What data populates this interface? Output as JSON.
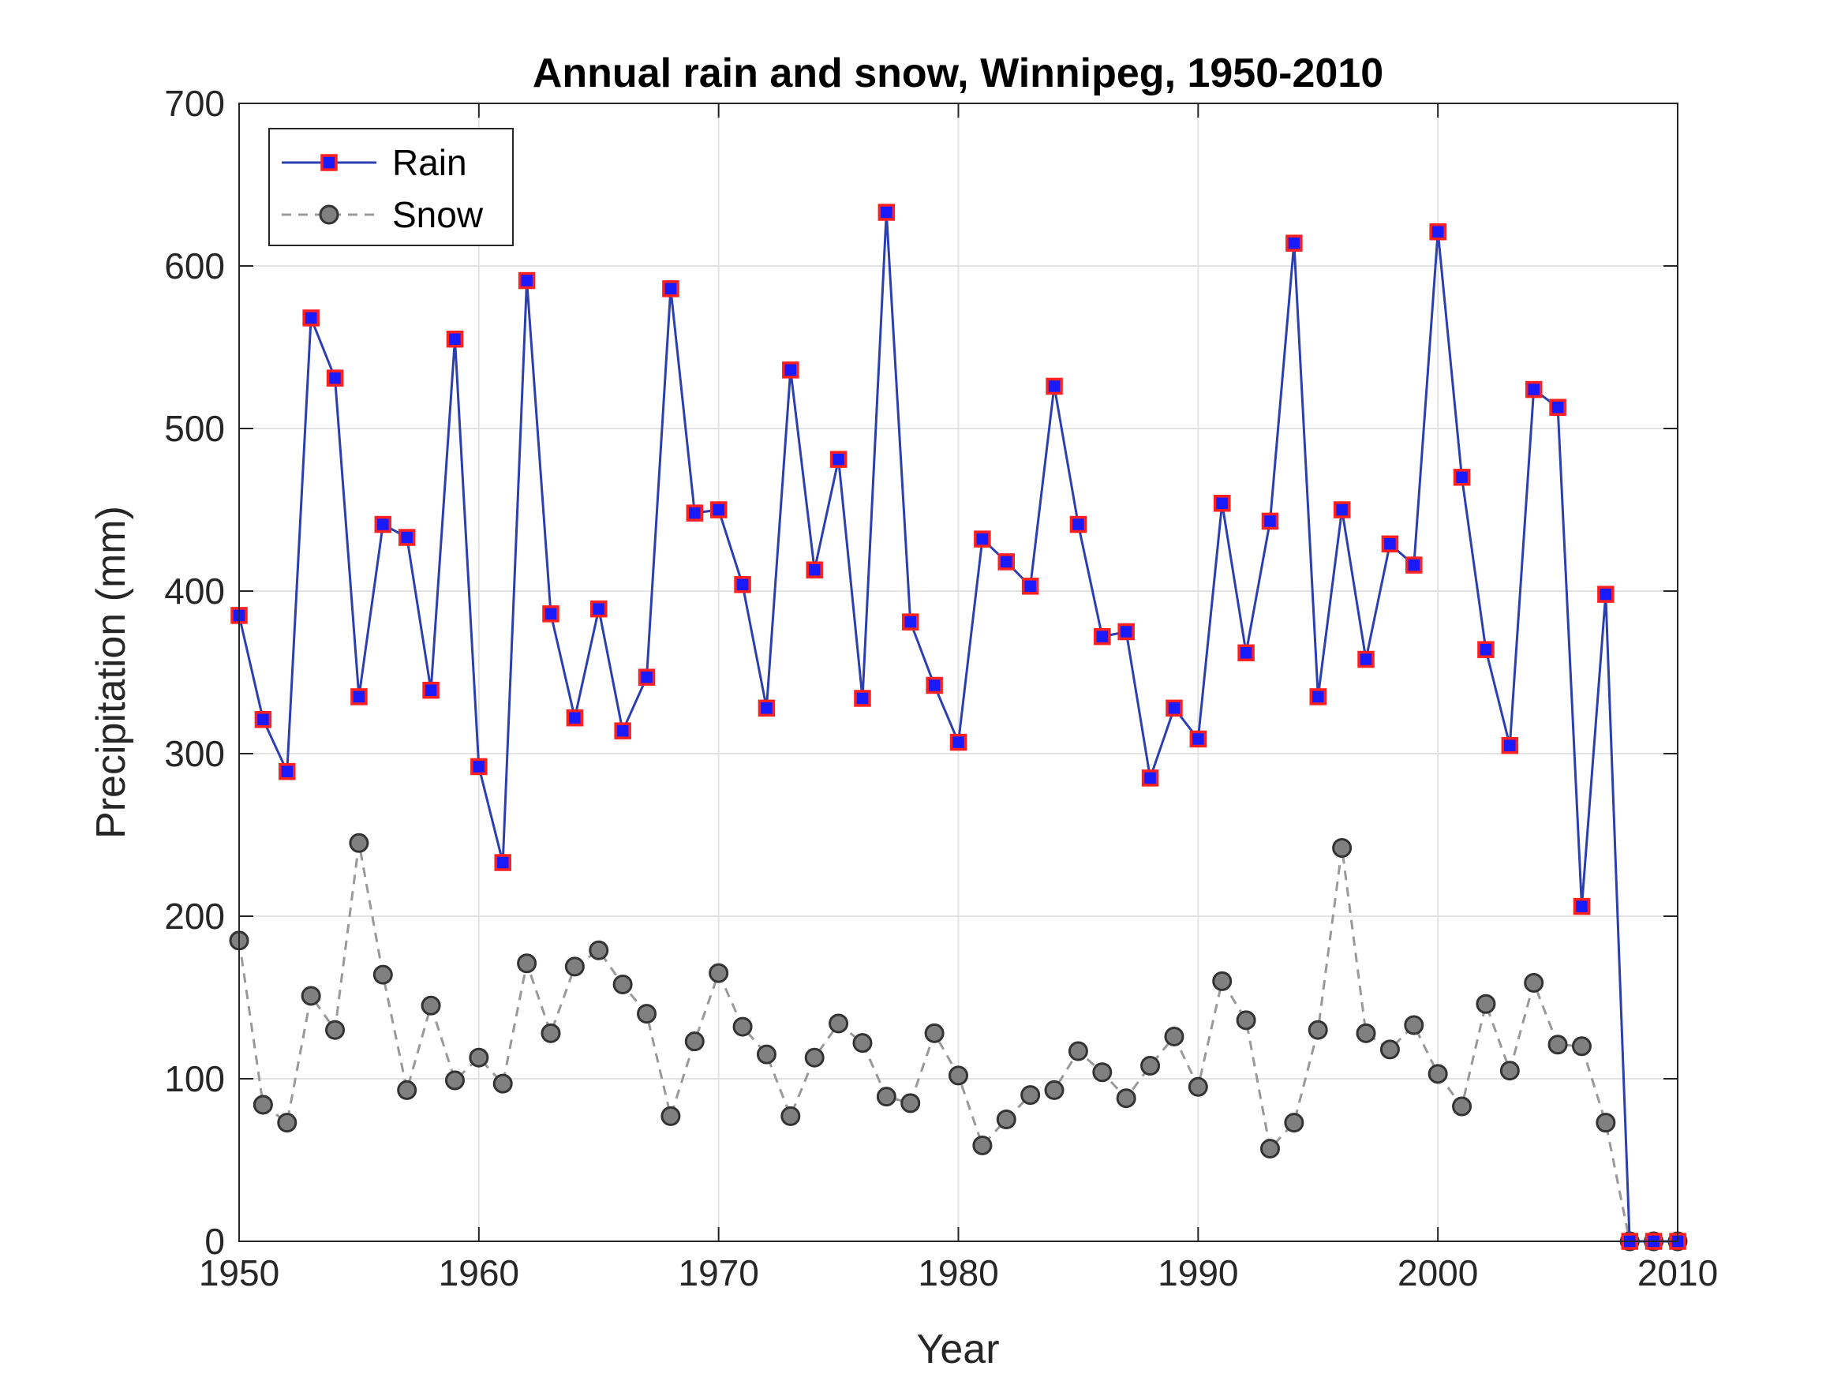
{
  "chart_data": {
    "type": "line",
    "title": "Annual rain and snow, Winnipeg, 1950-2010",
    "xlabel": "Year",
    "ylabel": "Precipitation (mm)",
    "xlim": [
      1950,
      2010
    ],
    "ylim": [
      0,
      700
    ],
    "xticks": [
      1950,
      1960,
      1970,
      1980,
      1990,
      2000,
      2010
    ],
    "yticks": [
      0,
      100,
      200,
      300,
      400,
      500,
      600,
      700
    ],
    "grid": true,
    "legend_position": "top-left",
    "x": [
      1950,
      1951,
      1952,
      1953,
      1954,
      1955,
      1956,
      1957,
      1958,
      1959,
      1960,
      1961,
      1962,
      1963,
      1964,
      1965,
      1966,
      1967,
      1968,
      1969,
      1970,
      1971,
      1972,
      1973,
      1974,
      1975,
      1976,
      1977,
      1978,
      1979,
      1980,
      1981,
      1982,
      1983,
      1984,
      1985,
      1986,
      1987,
      1988,
      1989,
      1990,
      1991,
      1992,
      1993,
      1994,
      1995,
      1996,
      1997,
      1998,
      1999,
      2000,
      2001,
      2002,
      2003,
      2004,
      2005,
      2006,
      2007,
      2008,
      2009,
      2010
    ],
    "series": [
      {
        "name": "Rain",
        "color": "#2b3fb0",
        "marker": "square",
        "marker_face": "#1a1aff",
        "marker_edge": "#ff2020",
        "line_style": "solid",
        "values": [
          385,
          321,
          289,
          568,
          531,
          335,
          441,
          433,
          339,
          555,
          292,
          233,
          591,
          386,
          322,
          389,
          314,
          347,
          586,
          448,
          450,
          404,
          328,
          536,
          413,
          481,
          334,
          633,
          381,
          342,
          307,
          432,
          418,
          403,
          526,
          441,
          372,
          375,
          285,
          328,
          309,
          454,
          362,
          443,
          614,
          335,
          450,
          358,
          429,
          416,
          621,
          470,
          364,
          305,
          524,
          513,
          206,
          398,
          0,
          0,
          0
        ]
      },
      {
        "name": "Snow",
        "color": "#999999",
        "marker": "circle",
        "marker_face": "#808080",
        "marker_edge": "#333333",
        "line_style": "dashed",
        "values": [
          185,
          84,
          73,
          151,
          130,
          245,
          164,
          93,
          145,
          99,
          113,
          97,
          171,
          128,
          169,
          179,
          158,
          140,
          77,
          123,
          165,
          132,
          115,
          77,
          113,
          134,
          122,
          89,
          85,
          128,
          102,
          59,
          75,
          90,
          93,
          117,
          104,
          88,
          108,
          126,
          95,
          160,
          136,
          57,
          73,
          130,
          242,
          128,
          118,
          133,
          103,
          83,
          146,
          105,
          159,
          121,
          120,
          73,
          0,
          0,
          0
        ]
      }
    ]
  }
}
